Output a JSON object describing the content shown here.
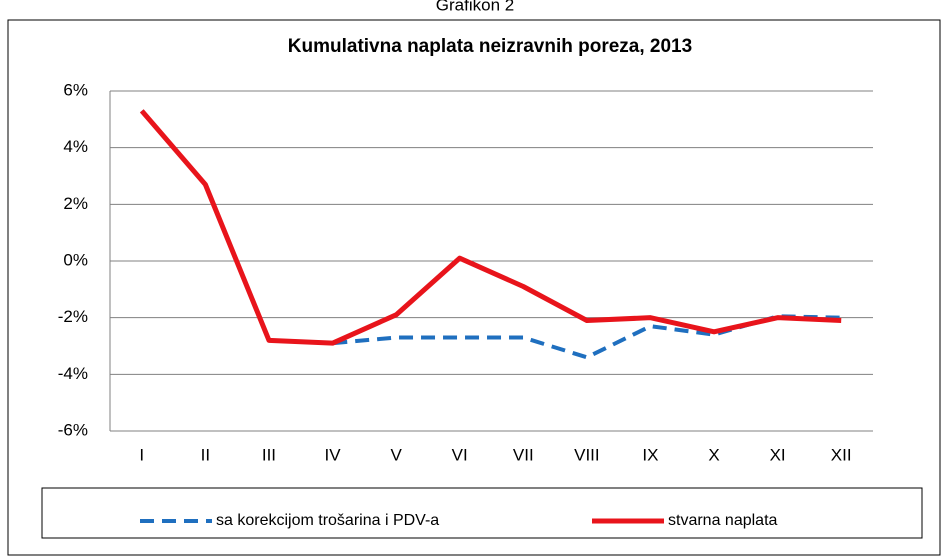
{
  "chart_data": {
    "type": "line",
    "figure_label": "Grafikon 2",
    "title": "Kumulativna naplata neizravnih poreza,  2013",
    "categories": [
      "I",
      "II",
      "III",
      "IV",
      "V",
      "VI",
      "VII",
      "VIII",
      "IX",
      "X",
      "XI",
      "XII"
    ],
    "series": [
      {
        "name": "sa korekcijom trošarina i PDV-a",
        "color": "#1f6fbf",
        "dash": true,
        "values": [
          5.3,
          2.7,
          -2.8,
          -2.9,
          -2.7,
          -2.7,
          -2.7,
          -3.4,
          -2.3,
          -2.6,
          -1.95,
          -2.0
        ]
      },
      {
        "name": "stvarna naplata",
        "color": "#e8141b",
        "dash": false,
        "values": [
          5.3,
          2.7,
          -2.8,
          -2.9,
          -1.9,
          0.1,
          -0.9,
          -2.1,
          -2.0,
          -2.5,
          -2.0,
          -2.1
        ]
      }
    ],
    "ylim": [
      -6,
      6
    ],
    "yticks": [
      {
        "value": -6,
        "label": "-6%"
      },
      {
        "value": -4,
        "label": "-4%"
      },
      {
        "value": -2,
        "label": "-2%"
      },
      {
        "value": 0,
        "label": "0%"
      },
      {
        "value": 2,
        "label": "2%"
      },
      {
        "value": 4,
        "label": "4%"
      },
      {
        "value": 6,
        "label": "6%"
      }
    ],
    "grid": true,
    "legend": "bottom"
  }
}
